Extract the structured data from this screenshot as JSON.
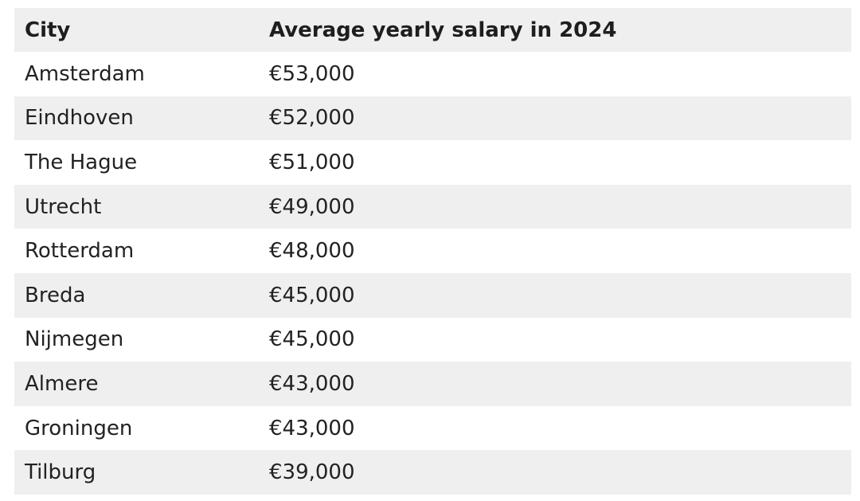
{
  "table": {
    "headers": [
      "City",
      "Average yearly salary in 2024"
    ],
    "rows": [
      {
        "city": "Amsterdam",
        "salary": "€53,000"
      },
      {
        "city": "Eindhoven",
        "salary": "€52,000"
      },
      {
        "city": "The Hague",
        "salary": "€51,000"
      },
      {
        "city": "Utrecht",
        "salary": "€49,000"
      },
      {
        "city": "Rotterdam",
        "salary": "€48,000"
      },
      {
        "city": "Breda",
        "salary": "€45,000"
      },
      {
        "city": "Nijmegen",
        "salary": "€45,000"
      },
      {
        "city": "Almere",
        "salary": "€43,000"
      },
      {
        "city": "Groningen",
        "salary": "€43,000"
      },
      {
        "city": "Tilburg",
        "salary": "€39,000"
      }
    ]
  },
  "colors": {
    "header_bg": "#efefef",
    "stripe_bg": "#efefef",
    "text": "#222222"
  }
}
